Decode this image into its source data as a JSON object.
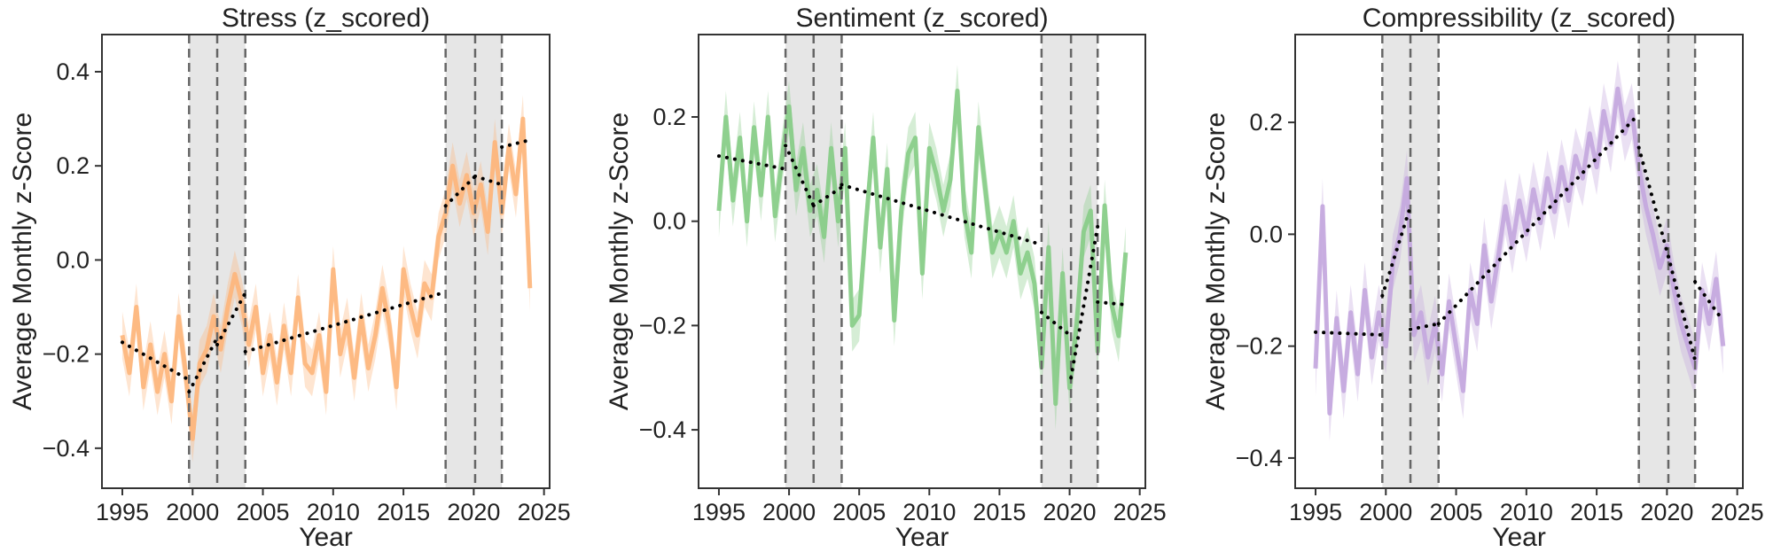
{
  "figure": {
    "shared": {
      "xlabel": "Year",
      "ylabel": "Average Monthly z-Score",
      "xticks": [
        1995,
        2000,
        2005,
        2010,
        2015,
        2020,
        2025
      ],
      "xlim": [
        1993.55,
        2025.4
      ],
      "breakpoints": [
        1999.75,
        2001.75,
        2003.75,
        2018.0,
        2020.1,
        2022.0
      ],
      "shaded_periods": [
        [
          1999.75,
          2003.75
        ],
        [
          2018.0,
          2022.0
        ]
      ],
      "x": [
        1995.0,
        1995.5,
        1996.0,
        1996.5,
        1997.0,
        1997.5,
        1998.0,
        1998.5,
        1999.0,
        1999.5,
        2000.0,
        2000.5,
        2001.0,
        2001.5,
        2002.0,
        2002.5,
        2003.0,
        2003.5,
        2004.0,
        2004.5,
        2005.0,
        2005.5,
        2006.0,
        2006.5,
        2007.0,
        2007.5,
        2008.0,
        2008.5,
        2009.0,
        2009.5,
        2010.0,
        2010.5,
        2011.0,
        2011.5,
        2012.0,
        2012.5,
        2013.0,
        2013.5,
        2014.0,
        2014.5,
        2015.0,
        2015.5,
        2016.0,
        2016.5,
        2017.0,
        2017.5,
        2018.0,
        2018.5,
        2019.0,
        2019.5,
        2020.0,
        2020.5,
        2021.0,
        2021.5,
        2022.0,
        2022.5,
        2023.0,
        2023.5,
        2024.0
      ],
      "ci_halfwidth": 0.05
    }
  },
  "chart_data": [
    {
      "type": "line",
      "title": "Stress (z_scored)",
      "xlabel": "Year",
      "ylabel": "Average Monthly z-Score",
      "ylim": [
        -0.485,
        0.479
      ],
      "yticks": [
        -0.4,
        -0.2,
        0.0,
        0.2,
        0.4
      ],
      "ytick_labels": [
        "−0.4",
        "−0.2",
        "0.0",
        "0.2",
        "0.4"
      ],
      "color": "#fdb57a",
      "values": [
        -0.16,
        -0.24,
        -0.1,
        -0.27,
        -0.18,
        -0.28,
        -0.2,
        -0.3,
        -0.12,
        -0.24,
        -0.38,
        -0.22,
        -0.19,
        -0.12,
        -0.19,
        -0.1,
        -0.03,
        -0.09,
        -0.18,
        -0.1,
        -0.24,
        -0.16,
        -0.26,
        -0.14,
        -0.24,
        -0.08,
        -0.22,
        -0.24,
        -0.16,
        -0.28,
        -0.02,
        -0.2,
        -0.13,
        -0.25,
        -0.12,
        -0.23,
        -0.16,
        -0.06,
        -0.14,
        -0.27,
        -0.02,
        -0.1,
        -0.16,
        -0.05,
        -0.08,
        0.05,
        0.1,
        0.2,
        0.12,
        0.18,
        0.1,
        0.16,
        0.06,
        0.25,
        0.1,
        0.24,
        0.14,
        0.3,
        -0.06
      ],
      "trend_segments": [
        [
          [
            1995.0,
            -0.175
          ],
          [
            1999.75,
            -0.255
          ]
        ],
        [
          [
            1999.75,
            -0.28
          ],
          [
            2001.75,
            -0.165
          ]
        ],
        [
          [
            2001.75,
            -0.18
          ],
          [
            2003.75,
            -0.07
          ]
        ],
        [
          [
            2003.75,
            -0.195
          ],
          [
            2018.0,
            -0.068
          ]
        ],
        [
          [
            2018.0,
            0.115
          ],
          [
            2020.1,
            0.178
          ]
        ],
        [
          [
            2020.1,
            0.178
          ],
          [
            2022.0,
            0.16
          ]
        ],
        [
          [
            2022.0,
            0.24
          ],
          [
            2024.0,
            0.255
          ]
        ]
      ]
    },
    {
      "type": "line",
      "title": "Sentiment (z_scored)",
      "xlabel": "Year",
      "ylabel": "Average Monthly z-Score",
      "ylim": [
        -0.512,
        0.358
      ],
      "yticks": [
        -0.4,
        -0.2,
        0.0,
        0.2
      ],
      "ytick_labels": [
        "−0.4",
        "−0.2",
        "0.0",
        "0.2"
      ],
      "color": "#86cc86",
      "values": [
        0.02,
        0.2,
        0.04,
        0.16,
        0.0,
        0.18,
        0.05,
        0.2,
        0.01,
        0.12,
        0.22,
        0.06,
        0.14,
        0.02,
        0.06,
        -0.03,
        0.14,
        0.0,
        0.14,
        -0.2,
        -0.18,
        0.0,
        0.16,
        -0.05,
        0.1,
        -0.19,
        0.02,
        0.13,
        0.16,
        -0.1,
        0.14,
        0.09,
        0.02,
        0.08,
        0.25,
        0.02,
        -0.06,
        0.18,
        0.06,
        -0.06,
        -0.02,
        -0.06,
        0.0,
        -0.1,
        -0.06,
        -0.12,
        -0.28,
        -0.05,
        -0.35,
        -0.1,
        -0.32,
        -0.2,
        -0.02,
        0.02,
        -0.25,
        0.03,
        -0.16,
        -0.22,
        -0.06
      ],
      "trend_segments": [
        [
          [
            1995.0,
            0.125
          ],
          [
            1999.75,
            0.1
          ]
        ],
        [
          [
            1999.75,
            0.145
          ],
          [
            2001.75,
            0.03
          ]
        ],
        [
          [
            2001.75,
            0.03
          ],
          [
            2003.75,
            0.065
          ]
        ],
        [
          [
            2003.75,
            0.07
          ],
          [
            2018.0,
            -0.045
          ]
        ],
        [
          [
            2018.0,
            -0.175
          ],
          [
            2020.1,
            -0.22
          ]
        ],
        [
          [
            2020.1,
            -0.3
          ],
          [
            2022.0,
            -0.01
          ]
        ],
        [
          [
            2022.0,
            -0.155
          ],
          [
            2024.0,
            -0.16
          ]
        ]
      ]
    },
    {
      "type": "line",
      "title": "Compressibility (z_scored)",
      "xlabel": "Year",
      "ylabel": "Average Monthly z-Score",
      "ylim": [
        -0.454,
        0.357
      ],
      "yticks": [
        -0.4,
        -0.2,
        0.0,
        0.2
      ],
      "ytick_labels": [
        "−0.4",
        "−0.2",
        "0.0",
        "0.2"
      ],
      "color": "#c3a6de",
      "values": [
        -0.24,
        0.05,
        -0.32,
        -0.15,
        -0.28,
        -0.14,
        -0.25,
        -0.1,
        -0.22,
        -0.14,
        -0.2,
        -0.05,
        0.0,
        0.1,
        -0.18,
        -0.14,
        -0.22,
        -0.16,
        -0.25,
        -0.12,
        -0.2,
        -0.28,
        -0.1,
        -0.16,
        -0.02,
        -0.12,
        -0.04,
        0.05,
        -0.02,
        0.06,
        0.0,
        0.08,
        0.02,
        0.1,
        0.04,
        0.12,
        0.06,
        0.14,
        0.1,
        0.18,
        0.12,
        0.22,
        0.16,
        0.26,
        0.18,
        0.22,
        0.12,
        0.05,
        0.0,
        -0.06,
        -0.02,
        -0.1,
        -0.16,
        -0.2,
        -0.24,
        -0.1,
        -0.16,
        -0.08,
        -0.2
      ],
      "trend_segments": [
        [
          [
            1995.0,
            -0.175
          ],
          [
            1999.75,
            -0.18
          ]
        ],
        [
          [
            1999.75,
            -0.11
          ],
          [
            2001.75,
            0.05
          ]
        ],
        [
          [
            2001.75,
            -0.17
          ],
          [
            2003.75,
            -0.16
          ]
        ],
        [
          [
            2003.75,
            -0.16
          ],
          [
            2018.0,
            0.215
          ]
        ],
        [
          [
            2018.0,
            0.155
          ],
          [
            2020.1,
            -0.04
          ]
        ],
        [
          [
            2020.1,
            -0.04
          ],
          [
            2022.0,
            -0.225
          ]
        ],
        [
          [
            2022.0,
            -0.085
          ],
          [
            2024.0,
            -0.155
          ]
        ]
      ]
    }
  ]
}
